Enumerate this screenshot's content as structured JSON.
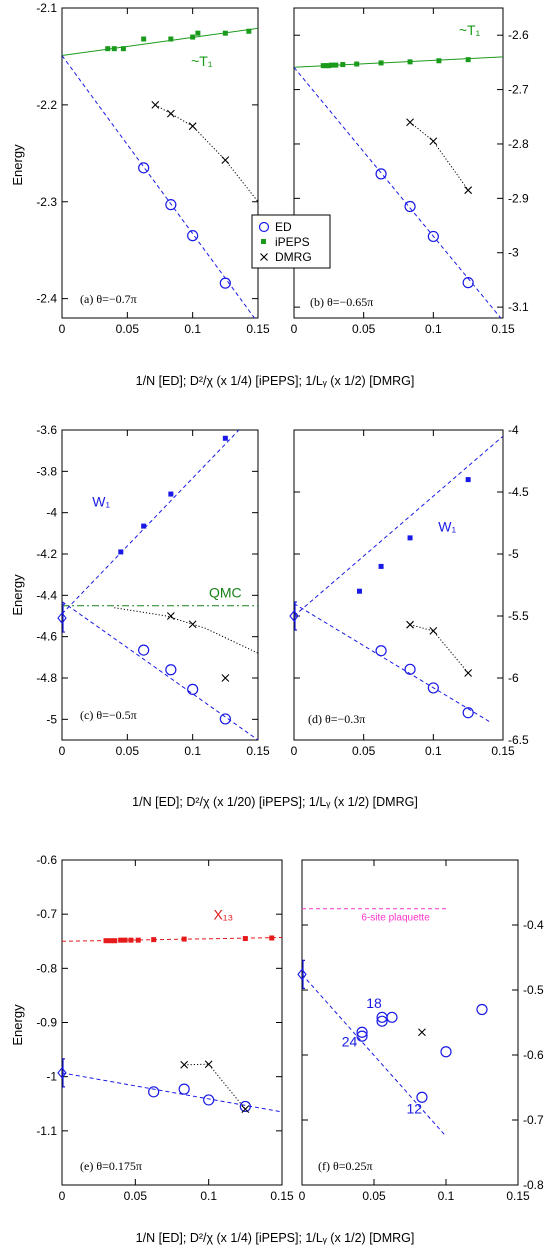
{
  "colors": {
    "ed": "#1a1ae6",
    "ipeps": "#1a9a1a",
    "ipeps_blue": "#1a1ae6",
    "ipeps_red": "#e61a1a",
    "dmrg": "#000000",
    "qmc": "#1a801a",
    "plaquette": "#ff33cc"
  },
  "ylabel": "Energy",
  "legend": {
    "ed": "ED",
    "ipeps": "iPEPS",
    "dmrg": "DMRG"
  },
  "rows": [
    {
      "xlabel": "1/N [ED];   D²/χ (x 1/4) [iPEPS];   1/Lᵧ (x 1/2) [DMRG]"
    },
    {
      "xlabel": "1/N [ED]; D²/χ (x 1/20) [iPEPS]; 1/Lᵧ (x 1/2) [DMRG]"
    },
    {
      "xlabel": "1/N [ED]; D²/χ (x 1/4) [iPEPS]; 1/Lᵧ (x 1/2) [DMRG]"
    }
  ],
  "chart_data": [
    {
      "type": "scatter",
      "panel_label": "(a)  θ=−0.7π",
      "xlim": [
        0,
        0.15
      ],
      "ylim": [
        -2.42,
        -2.1
      ],
      "xticks": [
        "0",
        "0.05",
        "0.1",
        "0.15"
      ],
      "xtick_values": [
        0,
        0.05,
        0.1,
        0.15
      ],
      "yticks": [
        "-2.4",
        "-2.3",
        "-2.2",
        "-2.1"
      ],
      "ytick_values": [
        -2.4,
        -2.3,
        -2.2,
        -2.1
      ],
      "yaxis_side": "left",
      "series": [
        {
          "name": "ED",
          "marker": "circle",
          "color": "#1a1ae6",
          "x": [
            0.0625,
            0.0833,
            0.1,
            0.125
          ],
          "y": [
            -2.265,
            -2.303,
            -2.335,
            -2.384
          ]
        },
        {
          "name": "iPEPS",
          "marker": "square",
          "color": "#1a9a1a",
          "x": [
            0.035,
            0.04,
            0.047,
            0.0625,
            0.0833,
            0.1,
            0.104,
            0.125,
            0.143
          ],
          "y": [
            -2.142,
            -2.142,
            -2.142,
            -2.132,
            -2.132,
            -2.13,
            -2.126,
            -2.126,
            -2.124
          ]
        },
        {
          "name": "DMRG",
          "marker": "cross",
          "color": "#000000",
          "x": [
            0.0714,
            0.0833,
            0.1,
            0.125
          ],
          "y": [
            -2.2,
            -2.209,
            -2.222,
            -2.257
          ]
        }
      ],
      "fit_lines": [
        {
          "from": [
            0,
            -2.149
          ],
          "to": [
            0.15,
            -2.121
          ],
          "color": "#1a9a1a",
          "style": "solid"
        },
        {
          "from": [
            0,
            -2.149
          ],
          "to": [
            0.15,
            -2.425
          ],
          "color": "#1a1ae6",
          "style": "dashed"
        },
        {
          "from": [
            0.0714,
            -2.2
          ],
          "to": [
            0.15,
            -2.3
          ],
          "color": "#000000",
          "style": "dotted",
          "through": [
            [
              0.0833,
              -2.209
            ],
            [
              0.1,
              -2.222
            ],
            [
              0.125,
              -2.257
            ]
          ]
        }
      ],
      "annotations": [
        {
          "text": "~T₁",
          "x": 0.107,
          "y": -2.16,
          "color": "#1a9a1a"
        }
      ],
      "legend": true
    },
    {
      "type": "scatter",
      "panel_label": "(b)  θ=−0.65π",
      "xlim": [
        0,
        0.15
      ],
      "ylim": [
        -3.12,
        -2.55
      ],
      "xticks": [
        "0",
        "0.05",
        "0.1",
        "0.15"
      ],
      "xtick_values": [
        0,
        0.05,
        0.1,
        0.15
      ],
      "yticks": [
        "-2.6",
        "-2.7",
        "-2.8",
        "-2.9",
        "-3",
        "-3.1"
      ],
      "ytick_values": [
        -2.6,
        -2.7,
        -2.8,
        -2.9,
        -3,
        -3.1
      ],
      "yaxis_side": "right",
      "series": [
        {
          "name": "ED",
          "marker": "circle",
          "color": "#1a1ae6",
          "x": [
            0.0625,
            0.0833,
            0.1,
            0.125
          ],
          "y": [
            -2.855,
            -2.915,
            -2.97,
            -3.055
          ]
        },
        {
          "name": "iPEPS",
          "marker": "square",
          "color": "#1a9a1a",
          "x": [
            0.021,
            0.023,
            0.025,
            0.027,
            0.03,
            0.035,
            0.045,
            0.0625,
            0.0833,
            0.104,
            0.125
          ],
          "y": [
            -2.656,
            -2.656,
            -2.656,
            -2.655,
            -2.655,
            -2.654,
            -2.653,
            -2.651,
            -2.649,
            -2.647,
            -2.645
          ]
        },
        {
          "name": "DMRG",
          "marker": "cross",
          "color": "#000000",
          "x": [
            0.0833,
            0.1,
            0.125
          ],
          "y": [
            -2.76,
            -2.795,
            -2.885
          ]
        }
      ],
      "fit_lines": [
        {
          "from": [
            0,
            -2.659
          ],
          "to": [
            0.15,
            -2.64
          ],
          "color": "#1a9a1a",
          "style": "solid"
        },
        {
          "from": [
            0,
            -2.659
          ],
          "to": [
            0.15,
            -3.125
          ],
          "color": "#1a1ae6",
          "style": "dashed"
        },
        {
          "from": [
            0.0833,
            -2.76
          ],
          "to": [
            0.125,
            -2.885
          ],
          "color": "#000000",
          "style": "dotted",
          "through": [
            [
              0.1,
              -2.795
            ]
          ]
        }
      ],
      "annotations": [
        {
          "text": "~T₁",
          "x": 0.126,
          "y": -2.6,
          "color": "#1a9a1a"
        }
      ]
    },
    {
      "type": "scatter",
      "panel_label": "(c)  θ=−0.5π",
      "xlim": [
        0,
        0.15
      ],
      "ylim": [
        -5.1,
        -3.6
      ],
      "xticks": [
        "0",
        "0.05",
        "0.1",
        "0.15"
      ],
      "xtick_values": [
        0,
        0.05,
        0.1,
        0.15
      ],
      "yticks": [
        "-3.6",
        "-3.8",
        "-4",
        "-4.2",
        "-4.4",
        "-4.6",
        "-4.8",
        "-5"
      ],
      "ytick_values": [
        -3.6,
        -3.8,
        -4,
        -4.2,
        -4.4,
        -4.6,
        -4.8,
        -5
      ],
      "yaxis_side": "left",
      "series": [
        {
          "name": "ED",
          "marker": "circle",
          "color": "#1a1ae6",
          "x": [
            0.0625,
            0.0833,
            0.1,
            0.125
          ],
          "y": [
            -4.665,
            -4.76,
            -4.855,
            -4.998
          ]
        },
        {
          "name": "iPEPS",
          "marker": "square",
          "color": "#1a1ae6",
          "x": [
            0.045,
            0.0625,
            0.0833,
            0.125
          ],
          "y": [
            -4.19,
            -4.065,
            -3.91,
            -3.64
          ]
        },
        {
          "name": "DMRG",
          "marker": "cross",
          "color": "#000000",
          "x": [
            0.0833,
            0.1,
            0.125
          ],
          "y": [
            -4.5,
            -4.54,
            -4.8
          ]
        },
        {
          "name": "QMC",
          "marker": "diamond",
          "color": "#1a1ae6",
          "x": [
            0
          ],
          "y": [
            -4.51
          ]
        }
      ],
      "fit_lines": [
        {
          "from": [
            0,
            -4.49
          ],
          "to": [
            0.14,
            -3.57
          ],
          "color": "#1a1ae6",
          "style": "dashed"
        },
        {
          "from": [
            0,
            -4.43
          ],
          "to": [
            0.15,
            -5.1
          ],
          "color": "#1a1ae6",
          "style": "dashed"
        },
        {
          "from": [
            0,
            -4.45
          ],
          "to": [
            0.15,
            -4.45
          ],
          "color": "#1a801a",
          "style": "dashdot"
        },
        {
          "from": [
            0.04,
            -4.46
          ],
          "to": [
            0.15,
            -4.68
          ],
          "color": "#000000",
          "style": "dotted",
          "through": [
            [
              0.08,
              -4.5
            ],
            [
              0.11,
              -4.56
            ]
          ]
        }
      ],
      "annotations": [
        {
          "text": "W₁",
          "x": 0.03,
          "y": -3.97,
          "color": "#1a1ae6"
        },
        {
          "text": "QMC",
          "x": 0.125,
          "y": -4.41,
          "color": "#1a801a"
        }
      ]
    },
    {
      "type": "scatter",
      "panel_label": "(d)  θ=−0.3π",
      "xlim": [
        0,
        0.15
      ],
      "ylim": [
        -6.5,
        -4
      ],
      "xticks": [
        "0",
        "0.05",
        "0.1",
        "0.15"
      ],
      "xtick_values": [
        0,
        0.05,
        0.1,
        0.15
      ],
      "yticks": [
        "-4",
        "-4.5",
        "-5",
        "-5.5",
        "-6",
        "-6.5"
      ],
      "ytick_values": [
        -4,
        -4.5,
        -5,
        -5.5,
        -6,
        -6.5
      ],
      "yaxis_side": "right",
      "series": [
        {
          "name": "ED",
          "marker": "circle",
          "color": "#1a1ae6",
          "x": [
            0.0625,
            0.0833,
            0.1,
            0.125
          ],
          "y": [
            -5.78,
            -5.93,
            -6.08,
            -6.28
          ]
        },
        {
          "name": "iPEPS",
          "marker": "square",
          "color": "#1a1ae6",
          "x": [
            0.047,
            0.0625,
            0.0833,
            0.125
          ],
          "y": [
            -5.3,
            -5.1,
            -4.87,
            -4.4
          ]
        },
        {
          "name": "DMRG",
          "marker": "cross",
          "color": "#000000",
          "x": [
            0.0833,
            0.1,
            0.125
          ],
          "y": [
            -5.57,
            -5.62,
            -5.96
          ]
        },
        {
          "name": "QMC",
          "marker": "diamond",
          "color": "#1a1ae6",
          "x": [
            0
          ],
          "y": [
            -5.5
          ]
        }
      ],
      "fit_lines": [
        {
          "from": [
            0,
            -5.5
          ],
          "to": [
            0.15,
            -4.05
          ],
          "color": "#1a1ae6",
          "style": "dashed"
        },
        {
          "from": [
            0,
            -5.4
          ],
          "to": [
            0.14,
            -6.35
          ],
          "color": "#1a1ae6",
          "style": "dashed"
        },
        {
          "from": [
            0.0833,
            -5.57
          ],
          "to": [
            0.125,
            -5.96
          ],
          "color": "#000000",
          "style": "dotted",
          "through": [
            [
              0.1,
              -5.62
            ]
          ]
        }
      ],
      "annotations": [
        {
          "text": "W₁",
          "x": 0.11,
          "y": -4.82,
          "color": "#1a1ae6"
        }
      ]
    },
    {
      "type": "scatter",
      "panel_label": "(e)  θ=0.175π",
      "xlim": [
        0,
        0.15
      ],
      "ylim": [
        -1.2,
        -0.6
      ],
      "xticks": [
        "0",
        "0.05",
        "0.1",
        "0.15"
      ],
      "xtick_values": [
        0,
        0.05,
        0.1,
        0.15
      ],
      "yticks": [
        "-0.6",
        "-0.7",
        "-0.8",
        "-0.9",
        "-1",
        "-1.1"
      ],
      "ytick_values": [
        -0.6,
        -0.7,
        -0.8,
        -0.9,
        -1,
        -1.1
      ],
      "yaxis_side": "left",
      "series": [
        {
          "name": "ED",
          "marker": "circle",
          "color": "#1a1ae6",
          "x": [
            0.0625,
            0.0833,
            0.1,
            0.125
          ],
          "y": [
            -1.028,
            -1.023,
            -1.043,
            -1.055
          ]
        },
        {
          "name": "iPEPS",
          "marker": "square",
          "color": "#e61a1a",
          "x": [
            0.03,
            0.033,
            0.036,
            0.04,
            0.043,
            0.047,
            0.052,
            0.0625,
            0.0833,
            0.125,
            0.143
          ],
          "y": [
            -0.749,
            -0.749,
            -0.749,
            -0.748,
            -0.748,
            -0.748,
            -0.748,
            -0.747,
            -0.746,
            -0.745,
            -0.744
          ]
        },
        {
          "name": "DMRG",
          "marker": "cross",
          "color": "#000000",
          "x": [
            0.0833,
            0.1,
            0.125
          ],
          "y": [
            -0.978,
            -0.977,
            -1.06
          ]
        },
        {
          "name": "QMC",
          "marker": "diamond",
          "color": "#1a1ae6",
          "x": [
            0
          ],
          "y": [
            -0.993
          ]
        }
      ],
      "fit_lines": [
        {
          "from": [
            0,
            -0.75
          ],
          "to": [
            0.15,
            -0.743
          ],
          "color": "#e61a1a",
          "style": "dashed"
        },
        {
          "from": [
            0,
            -0.993
          ],
          "to": [
            0.15,
            -1.065
          ],
          "color": "#1a1ae6",
          "style": "dashed"
        },
        {
          "from": [
            0.0833,
            -0.978
          ],
          "to": [
            0.125,
            -1.06
          ],
          "color": "#000000",
          "style": "dotted",
          "through": [
            [
              0.1,
              -0.977
            ]
          ]
        }
      ],
      "annotations": [
        {
          "text": "X₁₃",
          "x": 0.11,
          "y": -0.71,
          "color": "#e61a1a"
        }
      ]
    },
    {
      "type": "scatter",
      "panel_label": "(f)  θ=0.25π",
      "xlim": [
        0,
        0.15
      ],
      "ylim": [
        -0.8,
        -0.3
      ],
      "xticks": [
        "0",
        "0.05",
        "0.1",
        "0.15"
      ],
      "xtick_values": [
        0,
        0.05,
        0.1,
        0.15
      ],
      "yticks": [
        "-0.4",
        "-0.5",
        "-0.6",
        "-0.7",
        "-0.8"
      ],
      "ytick_values": [
        -0.4,
        -0.5,
        -0.6,
        -0.7,
        -0.8
      ],
      "yaxis_side": "right",
      "series": [
        {
          "name": "ED",
          "marker": "circle",
          "color": "#1a1ae6",
          "x": [
            0.0417,
            0.0417,
            0.0556,
            0.0556,
            0.0625,
            0.0833,
            0.1,
            0.125
          ],
          "y": [
            -0.565,
            -0.571,
            -0.542,
            -0.548,
            -0.542,
            -0.665,
            -0.595,
            -0.53
          ]
        },
        {
          "name": "DMRG",
          "marker": "cross",
          "color": "#000000",
          "x": [
            0.0833
          ],
          "y": [
            -0.565
          ]
        },
        {
          "name": "QMC",
          "marker": "diamond",
          "color": "#1a1ae6",
          "x": [
            0
          ],
          "y": [
            -0.476
          ]
        }
      ],
      "fit_lines": [
        {
          "from": [
            0,
            -0.476
          ],
          "to": [
            0.1,
            -0.725
          ],
          "color": "#1a1ae6",
          "style": "dashed"
        },
        {
          "from": [
            0,
            -0.375
          ],
          "to": [
            0.1,
            -0.375
          ],
          "color": "#ff33cc",
          "style": "dashed"
        }
      ],
      "annotations": [
        {
          "text": "6-site plaquette",
          "x": 0.065,
          "y": -0.393,
          "color": "#ff33cc"
        },
        {
          "text": "18",
          "x": 0.05,
          "y": -0.528,
          "color": "#1a1ae6"
        },
        {
          "text": "24",
          "x": 0.033,
          "y": -0.587,
          "color": "#1a1ae6"
        },
        {
          "text": "12",
          "x": 0.078,
          "y": -0.69,
          "color": "#1a1ae6"
        }
      ]
    }
  ]
}
